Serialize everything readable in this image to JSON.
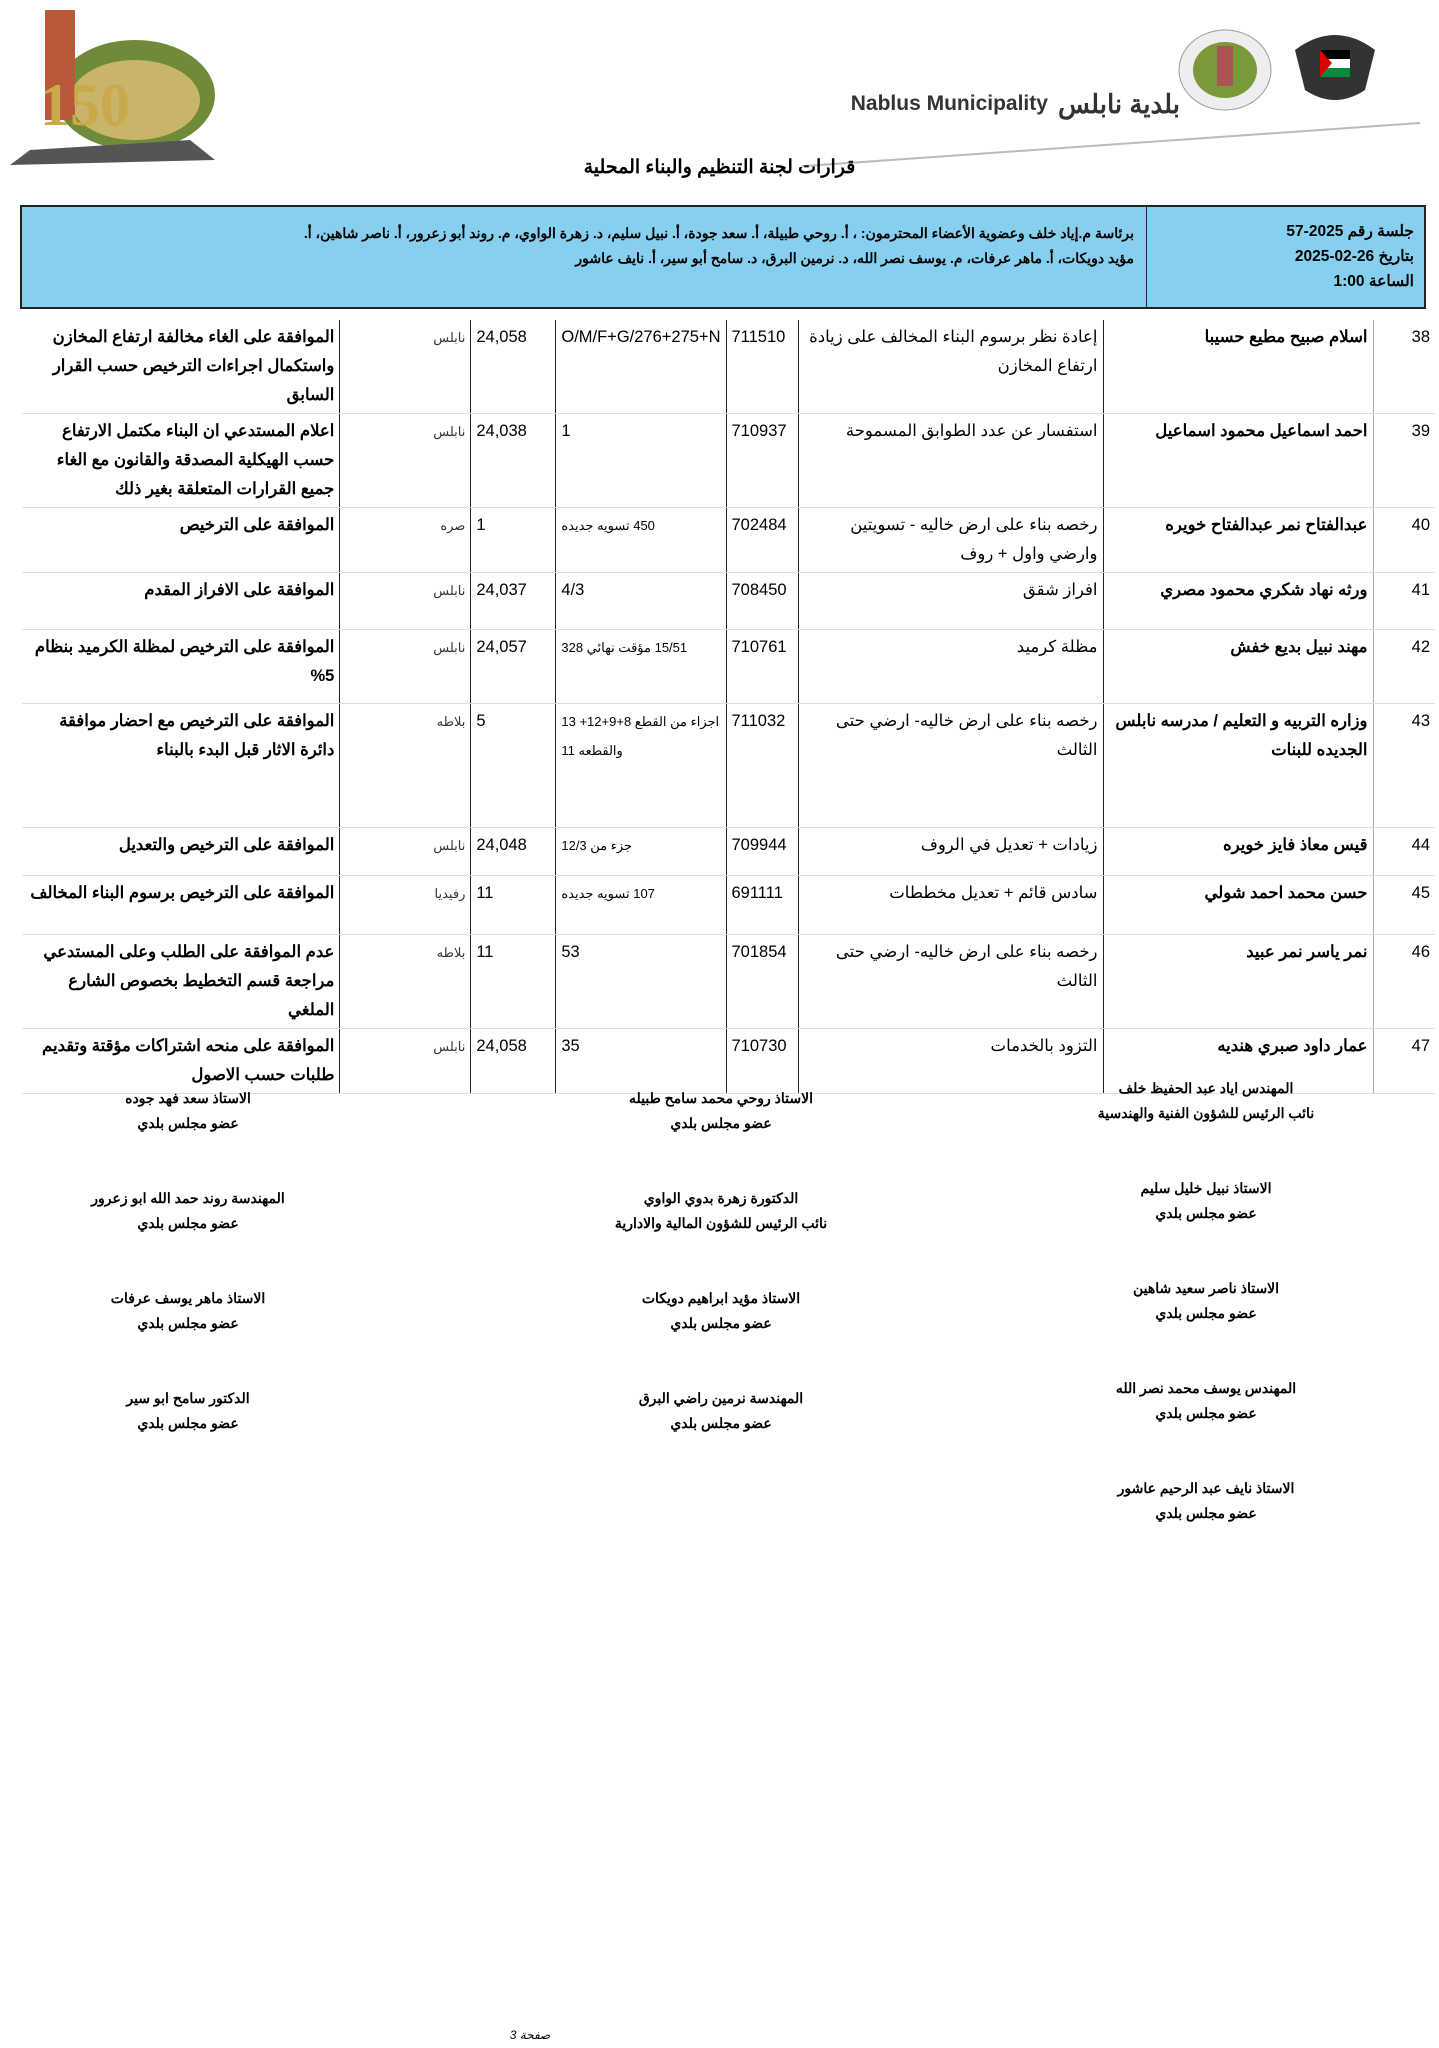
{
  "header": {
    "brand_en": "Nablus Municipality",
    "brand_ar": "بلدية نابلس",
    "logo_text": "150 نابلس",
    "title": "قرارات لجنة التنظيم والبناء المحلية"
  },
  "session": {
    "number": "جلسة رقم 2025-57",
    "date": "بتاريخ 26-02-2025",
    "time": "الساعة 1:00",
    "attendees_1": "برئاسة م.إياد خلف وعضوية الأعضاء المحترمون: ، أ. روحي طبيلة، أ. سعد جودة، أ. نبيل سليم، د. زهرة الواوي، م. روند أبو زعرور، أ. ناصر شاهين، أ.",
    "attendees_2": "مؤيد دويكات، أ. ماهر عرفات، م. يوسف نصر الله، د. نرمين البرق، د. سامح أبو سير، أ. نايف عاشور"
  },
  "rows": [
    {
      "num": "38",
      "name": "اسلام صبيح مطيع حسيبا",
      "subject": "إعادة نظر برسوم البناء المخالف على زيادة ارتفاع المخازن",
      "request": "711510",
      "plot": "O/M/F+G/276+275+N",
      "basin": "24,058",
      "region": "نابلس",
      "decision": "الموافقة على الغاء مخالفة ارتفاع المخازن واستكمال اجراءات الترخيص حسب القرار السابق"
    },
    {
      "num": "39",
      "name": "احمد اسماعيل محمود اسماعيل",
      "subject": "استفسار عن عدد الطوابق المسموحة",
      "request": "710937",
      "plot": "1",
      "basin": "24,038",
      "region": "نابلس",
      "decision": "اعلام المستدعي ان البناء مكتمل الارتفاع حسب الهيكلية المصدقة والقانون مع الغاء جميع القرارات المتعلقة بغير ذلك"
    },
    {
      "num": "40",
      "name": "عبدالفتاح نمر عبدالفتاح خويره",
      "subject": "رخصه بناء على ارض خاليه - تسويتين وارضي واول + روف",
      "request": "702484",
      "plot": "450 تسويه جديده",
      "basin": "1",
      "region": "صره",
      "decision": "الموافقة على الترخيص"
    },
    {
      "num": "41",
      "name": "ورثه نهاد شكري محمود مصري",
      "subject": "افراز شقق",
      "request": "708450",
      "plot": "4/3",
      "basin": "24,037",
      "region": "نابلس",
      "decision": "الموافقة على الافراز المقدم"
    },
    {
      "num": "42",
      "name": "مهند نبيل بديع خفش",
      "subject": "مظلة كرميد",
      "request": "710761",
      "plot": "15/51 مؤقت نهائي 328",
      "basin": "24,057",
      "region": "نابلس",
      "decision": "الموافقة على الترخيص لمظلة الكرميد بنظام 5%"
    },
    {
      "num": "43",
      "name": "وزاره التربيه و التعليم / مدرسه نابلس الجديده للبنات",
      "subject": "رخصه بناء على ارض خاليه- ارضي حتى الثالث",
      "request": "711032",
      "plot": "اجزاء من القطع 8+9+12+ 13 والقطعه 11",
      "basin": "5",
      "region": "بلاطه",
      "decision": "الموافقة على الترخيص مع احضار موافقة دائرة الاثار قبل البدء بالبناء"
    },
    {
      "num": "44",
      "name": "قيس معاذ فايز خويره",
      "subject": "زيادات + تعديل في الروف",
      "request": "709944",
      "plot": "جزء من 12/3",
      "basin": "24,048",
      "region": "نابلس",
      "decision": "الموافقة على الترخيص والتعديل"
    },
    {
      "num": "45",
      "name": "حسن محمد احمد شولي",
      "subject": "سادس قائم + تعديل مخططات",
      "request": "691111",
      "plot": "107 تسويه جديده",
      "basin": "11",
      "region": "رفيديا",
      "decision": "الموافقة على الترخيص برسوم البناء المخالف"
    },
    {
      "num": "46",
      "name": "نمر ياسر نمر عبيد",
      "subject": "رخصه بناء على ارض خاليه- ارضي حتى الثالث",
      "request": "701854",
      "plot": "53",
      "basin": "11",
      "region": "بلاطه",
      "decision": "عدم الموافقة على الطلب وعلى المستدعي مراجعة قسم التخطيط بخصوص الشارع الملغي"
    },
    {
      "num": "47",
      "name": "عمار داود صبري هنديه",
      "subject": "التزود بالخدمات",
      "request": "710730",
      "plot": "35",
      "basin": "24,058",
      "region": "نابلس",
      "decision": "الموافقة على منحه اشتراكات مؤقتة وتقديم طلبات حسب الاصول"
    }
  ],
  "signatures": [
    {
      "name": "المهندس اياد عبد الحفيظ خلف",
      "role": "نائب الرئيس للشؤون الفنية والهندسية"
    },
    {
      "name": "الاستاذ روحي محمد سامح طبيله",
      "role": "عضو مجلس بلدي"
    },
    {
      "name": "الاستاذ سعد فهد جوده",
      "role": "عضو مجلس بلدي"
    },
    {
      "name": "الاستاذ نبيل خليل سليم",
      "role": "عضو مجلس بلدي"
    },
    {
      "name": "الدكتورة زهرة بدوي الواوي",
      "role": "نائب الرئيس للشؤون المالية والادارية"
    },
    {
      "name": "المهندسة روند حمد الله ابو زعرور",
      "role": "عضو مجلس بلدي"
    },
    {
      "name": "الاستاذ ناصر سعيد شاهين",
      "role": "عضو مجلس بلدي"
    },
    {
      "name": "الاستاذ مؤيد ابراهيم دويكات",
      "role": "عضو مجلس بلدي"
    },
    {
      "name": "الاستاذ ماهر يوسف عرفات",
      "role": "عضو مجلس بلدي"
    },
    {
      "name": "المهندس يوسف محمد نصر الله",
      "role": "عضو مجلس بلدي"
    },
    {
      "name": "المهندسة نرمين راضي البرق",
      "role": "عضو مجلس بلدي"
    },
    {
      "name": "الدكتور سامح ابو سير",
      "role": "عضو مجلس بلدي"
    },
    {
      "name": "الاستاذ  نايف عبد الرحيم عاشور",
      "role": "عضو مجلس بلدي"
    }
  ],
  "footer": {
    "page": "صفحة 3"
  },
  "colors": {
    "session_box": "#87cfee"
  }
}
